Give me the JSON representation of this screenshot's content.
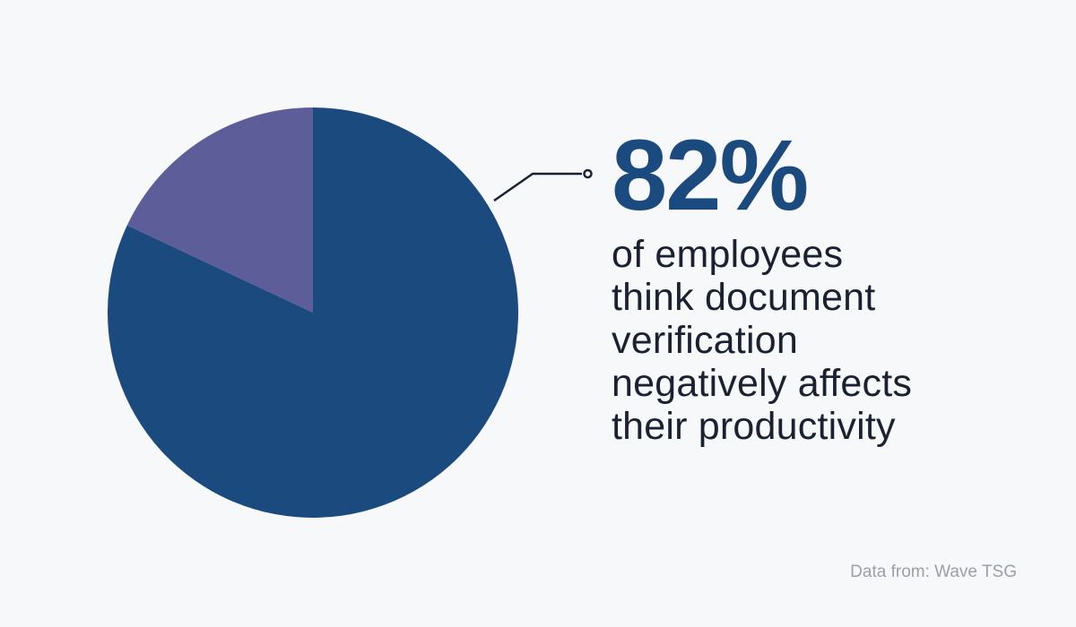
{
  "chart_data": {
    "type": "pie",
    "title": "",
    "legend": "none",
    "start_angle_deg": 0,
    "direction": "clockwise",
    "slices": [
      {
        "label": "82%",
        "value": 82,
        "color": "#1b4a7e"
      },
      {
        "label": "",
        "value": 18,
        "color": "#5d5d99"
      }
    ],
    "annotation": "82% of employees think document verification negatively affects their productivity",
    "source": "Data from: Wave TSG"
  },
  "headline": {
    "value": "82%",
    "lines": [
      "of employees",
      "think document",
      "verification",
      "negatively affects",
      "their productivity"
    ]
  },
  "footer": {
    "source": "Data from: Wave TSG"
  },
  "colors": {
    "background": "#f7f8fa",
    "primary": "#1b4a7e",
    "secondary": "#5d5d99",
    "text": "#1a2130",
    "muted": "#9aa0a9"
  }
}
